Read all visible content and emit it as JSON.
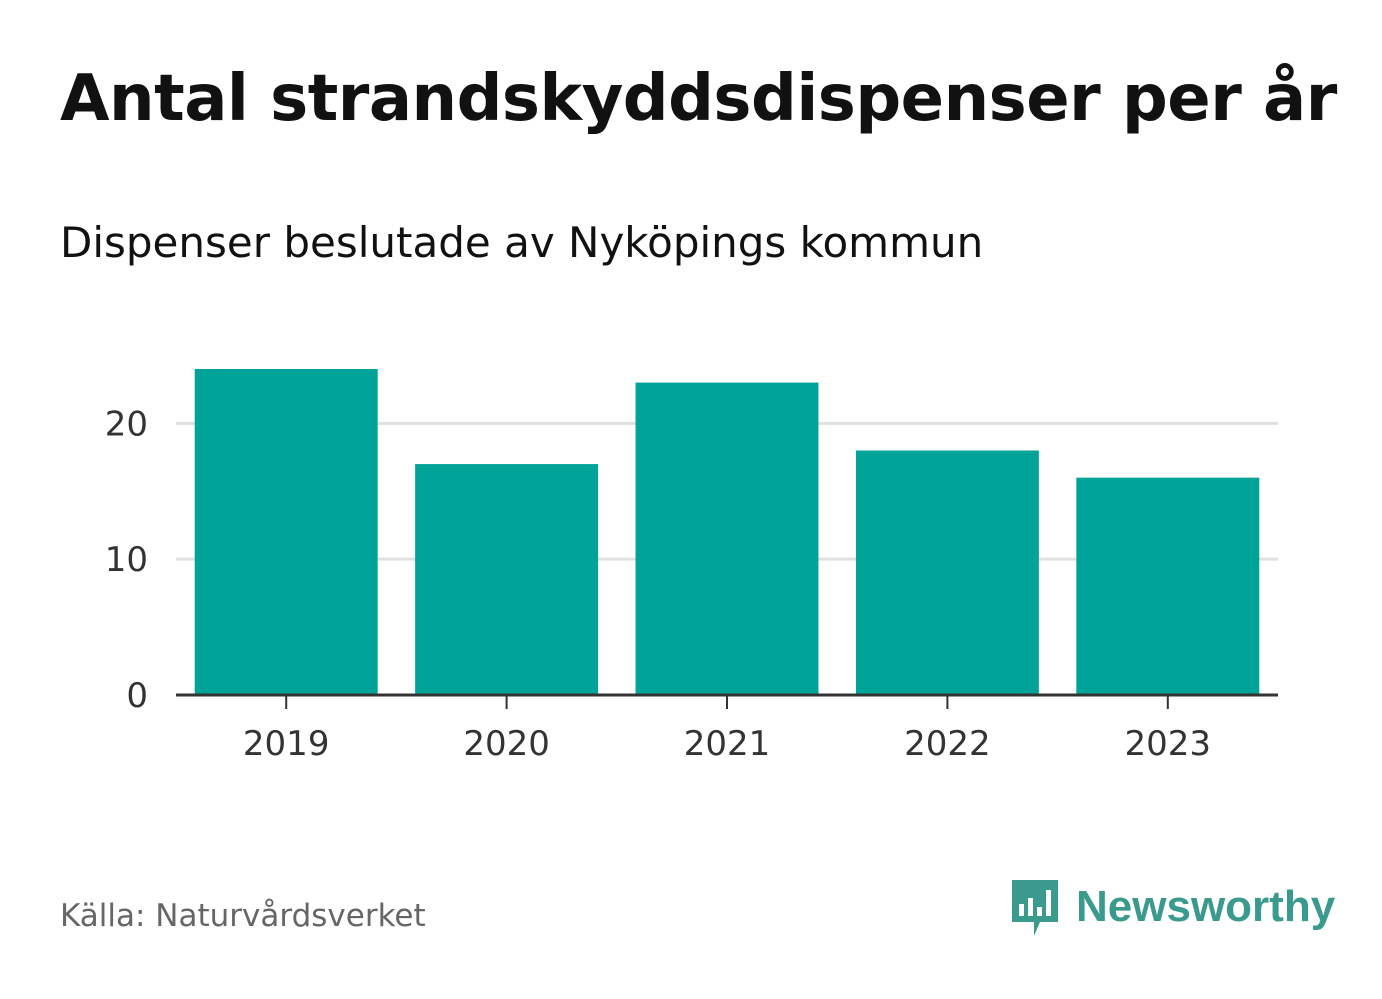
{
  "title": "Antal strandskyddsdispenser per år",
  "subtitle": "Dispenser beslutade av Nyköpings kommun",
  "source": "Källa: Naturvårdsverket",
  "brand": {
    "name": "Newsworthy",
    "color": "#3a9a8d",
    "icon": "newsworthy-logo-icon"
  },
  "colors": {
    "bar": "#00a398",
    "grid": "#e0e0e0",
    "axis": "#333333"
  },
  "chart_data": {
    "type": "bar",
    "title": "Antal strandskyddsdispenser per år",
    "subtitle": "Dispenser beslutade av Nyköpings kommun",
    "categories": [
      "2019",
      "2020",
      "2021",
      "2022",
      "2023"
    ],
    "values": [
      24,
      17,
      23,
      18,
      16
    ],
    "yticks": [
      0,
      10,
      20
    ],
    "ylim": [
      0,
      24
    ],
    "xlabel": "",
    "ylabel": "",
    "grid": true
  }
}
